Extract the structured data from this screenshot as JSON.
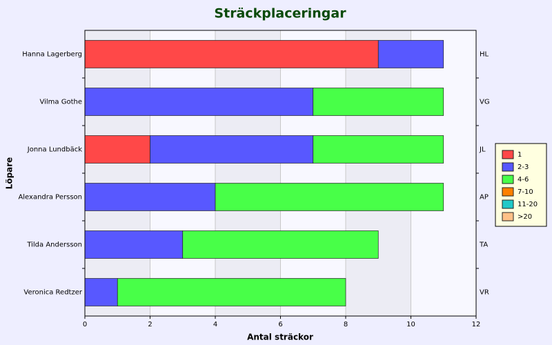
{
  "chart_data": {
    "type": "stacked_barh",
    "title": "Sträckplaceringar",
    "x_label": "Antal sträckor",
    "y_label": "Löpare",
    "categories": [
      "Hanna Lagerberg",
      "Vilma Gothe",
      "Jonna Lundbäck",
      "Alexandra Persson",
      "Tilda Andersson",
      "Veronica Redtzer"
    ],
    "right_labels": [
      "HL",
      "VG",
      "JL",
      "AP",
      "TA",
      "VR"
    ],
    "series": [
      {
        "name": "1",
        "color": "#ff4848",
        "values": [
          9,
          0,
          2,
          0,
          0,
          0
        ]
      },
      {
        "name": "2-3",
        "color": "#5858ff",
        "values": [
          2,
          7,
          5,
          4,
          3,
          1
        ]
      },
      {
        "name": "4-6",
        "color": "#48ff48",
        "values": [
          0,
          4,
          4,
          7,
          6,
          7
        ]
      },
      {
        "name": "7-10",
        "color": "#ff8000",
        "values": [
          0,
          0,
          0,
          0,
          0,
          0
        ]
      },
      {
        "name": "11-20",
        "color": "#20c8c8",
        "values": [
          0,
          0,
          0,
          0,
          0,
          0
        ]
      },
      {
        "name": ">20",
        "color": "#ffc088",
        "values": [
          0,
          0,
          0,
          0,
          0,
          0
        ]
      }
    ],
    "xlim": [
      0,
      12
    ],
    "xticks": [
      0,
      2,
      4,
      6,
      8,
      10,
      12
    ],
    "grid": true,
    "legend": "right"
  }
}
